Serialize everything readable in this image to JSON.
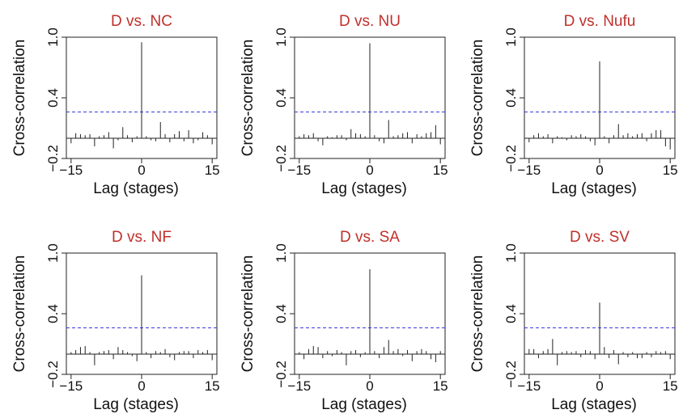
{
  "chart_data": [
    {
      "type": "bar",
      "title": "D vs. NC",
      "xlabel": "Lag (stages)",
      "ylabel": "Cross-correlation",
      "xlim": [
        -16,
        16
      ],
      "ylim": [
        -0.2,
        1.0
      ],
      "xticks": [
        -15,
        0,
        15
      ],
      "yticks": [
        -0.2,
        0.4,
        1.0
      ],
      "confidence_line": 0.26,
      "x": [
        -16,
        -15,
        -14,
        -13,
        -12,
        -11,
        -10,
        -9,
        -8,
        -7,
        -6,
        -5,
        -4,
        -3,
        -2,
        -1,
        0,
        1,
        2,
        3,
        4,
        5,
        6,
        7,
        8,
        9,
        10,
        11,
        12,
        13,
        14,
        15,
        16
      ],
      "values": [
        -0.04,
        -0.05,
        0.05,
        0.04,
        0.03,
        0.04,
        -0.08,
        0.02,
        0.03,
        0.06,
        -0.1,
        -0.02,
        0.11,
        0.03,
        -0.04,
        0.02,
        0.95,
        0.02,
        -0.02,
        -0.03,
        0.16,
        0.04,
        -0.04,
        0.04,
        0.07,
        -0.03,
        0.08,
        -0.05,
        -0.02,
        0.06,
        0.03,
        -0.06,
        -0.05
      ]
    },
    {
      "type": "bar",
      "title": "D vs. NU",
      "xlabel": "Lag (stages)",
      "ylabel": "Cross-correlation",
      "xlim": [
        -16,
        16
      ],
      "ylim": [
        -0.2,
        1.0
      ],
      "xticks": [
        -15,
        0,
        15
      ],
      "yticks": [
        -0.2,
        0.4,
        1.0
      ],
      "confidence_line": 0.26,
      "x": [
        -16,
        -15,
        -14,
        -13,
        -12,
        -11,
        -10,
        -9,
        -8,
        -7,
        -6,
        -5,
        -4,
        -3,
        -2,
        -1,
        0,
        1,
        2,
        3,
        4,
        5,
        6,
        7,
        8,
        9,
        10,
        11,
        12,
        13,
        14,
        15,
        16
      ],
      "values": [
        -0.03,
        0.02,
        0.04,
        0.03,
        0.05,
        -0.03,
        -0.07,
        0.02,
        0.01,
        0.03,
        0.03,
        -0.02,
        0.09,
        0.05,
        0.04,
        0.02,
        0.94,
        0.03,
        -0.03,
        -0.05,
        0.18,
        0.02,
        0.03,
        0.05,
        0.06,
        -0.05,
        0.04,
        0.02,
        0.05,
        0.06,
        0.13,
        -0.06,
        -0.11
      ]
    },
    {
      "type": "bar",
      "title": "D vs. Nufu",
      "xlabel": "Lag (stages)",
      "ylabel": "Cross-correlation",
      "xlim": [
        -16,
        16
      ],
      "ylim": [
        -0.2,
        1.0
      ],
      "xticks": [
        -15,
        0,
        15
      ],
      "yticks": [
        -0.2,
        0.4,
        1.0
      ],
      "confidence_line": 0.26,
      "x": [
        -16,
        -15,
        -14,
        -13,
        -12,
        -11,
        -10,
        -9,
        -8,
        -7,
        -6,
        -5,
        -4,
        -3,
        -2,
        -1,
        0,
        1,
        2,
        3,
        4,
        5,
        6,
        7,
        8,
        9,
        10,
        11,
        12,
        13,
        14,
        15,
        16
      ],
      "values": [
        -0.02,
        -0.04,
        0.03,
        0.05,
        0.02,
        0.04,
        -0.05,
        0.02,
        0.01,
        -0.02,
        0.03,
        0.02,
        0.04,
        0.02,
        -0.03,
        -0.07,
        0.76,
        0.02,
        -0.05,
        0.03,
        0.14,
        0.03,
        0.05,
        0.02,
        0.04,
        0.05,
        -0.03,
        0.05,
        0.08,
        0.08,
        -0.08,
        -0.11,
        -0.12
      ]
    },
    {
      "type": "bar",
      "title": "D vs. NF",
      "xlabel": "Lag (stages)",
      "ylabel": "Cross-correlation",
      "xlim": [
        -16,
        16
      ],
      "ylim": [
        -0.2,
        1.0
      ],
      "xticks": [
        -15,
        0,
        15
      ],
      "yticks": [
        -0.2,
        0.4,
        1.0
      ],
      "confidence_line": 0.26,
      "x": [
        -16,
        -15,
        -14,
        -13,
        -12,
        -11,
        -10,
        -9,
        -8,
        -7,
        -6,
        -5,
        -4,
        -3,
        -2,
        -1,
        0,
        1,
        2,
        3,
        4,
        5,
        6,
        7,
        8,
        9,
        10,
        11,
        12,
        13,
        14,
        15,
        16
      ],
      "values": [
        -0.03,
        0.02,
        0.04,
        0.07,
        0.08,
        0.02,
        -0.11,
        0.02,
        0.03,
        0.04,
        -0.05,
        0.07,
        0.04,
        0.02,
        -0.02,
        -0.07,
        0.78,
        0.02,
        -0.04,
        0.03,
        0.02,
        0.05,
        -0.03,
        -0.06,
        0.02,
        0.03,
        0.03,
        -0.04,
        0.04,
        0.02,
        0.04,
        -0.06,
        -0.04
      ]
    },
    {
      "type": "bar",
      "title": "D vs. SA",
      "xlabel": "Lag (stages)",
      "ylabel": "Cross-correlation",
      "xlim": [
        -16,
        16
      ],
      "ylim": [
        -0.2,
        1.0
      ],
      "xticks": [
        -15,
        0,
        15
      ],
      "yticks": [
        -0.2,
        0.4,
        1.0
      ],
      "confidence_line": 0.26,
      "x": [
        -16,
        -15,
        -14,
        -13,
        -12,
        -11,
        -10,
        -9,
        -8,
        -7,
        -6,
        -5,
        -4,
        -3,
        -2,
        -1,
        0,
        1,
        2,
        3,
        4,
        5,
        6,
        7,
        8,
        9,
        10,
        11,
        12,
        13,
        14,
        15,
        16
      ],
      "values": [
        -0.02,
        0.02,
        -0.05,
        0.05,
        0.08,
        0.07,
        -0.04,
        0.03,
        -0.02,
        0.04,
        0.02,
        -0.11,
        0.03,
        0.04,
        -0.03,
        0.02,
        0.84,
        0.03,
        -0.04,
        0.07,
        0.14,
        0.03,
        0.05,
        -0.02,
        0.04,
        -0.07,
        0.03,
        0.05,
        0.03,
        -0.05,
        -0.08,
        0.03,
        -0.04
      ]
    },
    {
      "type": "bar",
      "title": "D vs. SV",
      "xlabel": "Lag (stages)",
      "ylabel": "Cross-correlation",
      "xlim": [
        -16,
        16
      ],
      "ylim": [
        -0.2,
        1.0
      ],
      "xticks": [
        -15,
        0,
        15
      ],
      "yticks": [
        -0.2,
        0.4,
        1.0
      ],
      "confidence_line": 0.26,
      "x": [
        -16,
        -15,
        -14,
        -13,
        -12,
        -11,
        -10,
        -9,
        -8,
        -7,
        -6,
        -5,
        -4,
        -3,
        -2,
        -1,
        0,
        1,
        2,
        3,
        4,
        5,
        6,
        7,
        8,
        9,
        10,
        11,
        12,
        13,
        14,
        15,
        16
      ],
      "values": [
        -0.02,
        0.05,
        0.05,
        -0.04,
        0.03,
        0.05,
        0.15,
        -0.11,
        0.02,
        0.03,
        0.02,
        0.03,
        -0.03,
        0.04,
        0.03,
        -0.05,
        0.51,
        0.07,
        -0.04,
        0.04,
        -0.1,
        0.02,
        -0.03,
        0.02,
        -0.04,
        -0.04,
        0.02,
        -0.03,
        0.03,
        0.02,
        0.03,
        -0.05,
        -0.03
      ]
    }
  ]
}
